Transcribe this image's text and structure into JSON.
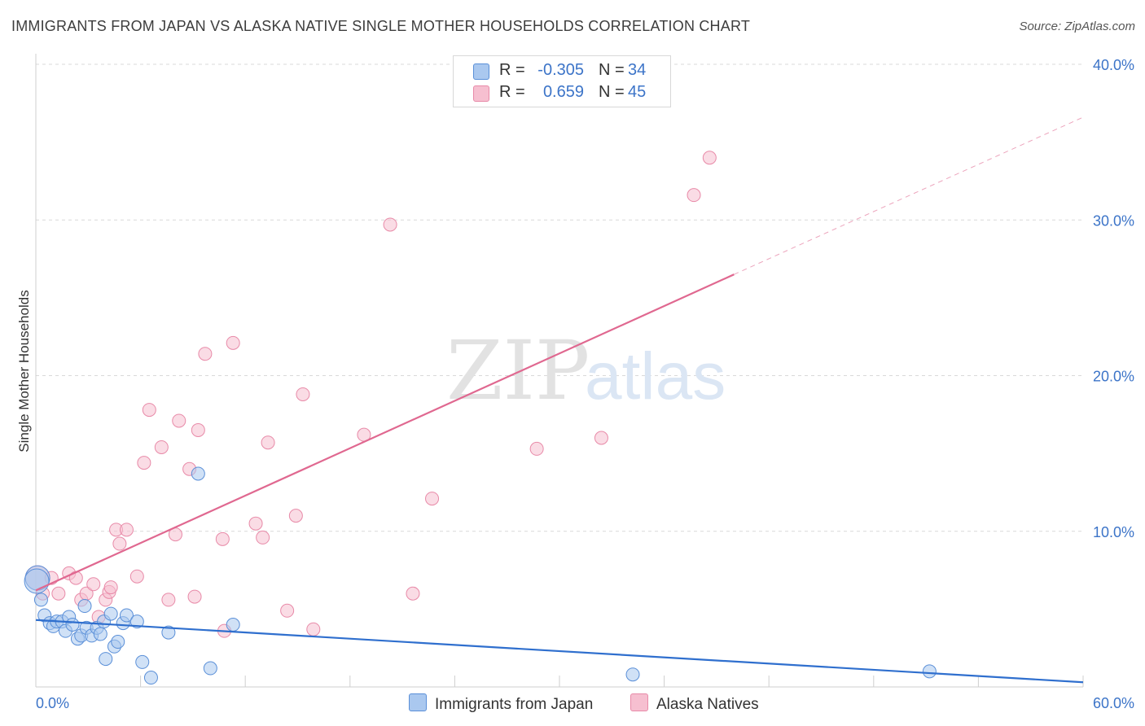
{
  "title": "IMMIGRANTS FROM JAPAN VS ALASKA NATIVE SINGLE MOTHER HOUSEHOLDS CORRELATION CHART",
  "source": "Source: ZipAtlas.com",
  "watermark": {
    "zip": "ZIP",
    "atlas": "atlas"
  },
  "legend": {
    "series1": {
      "r_label": "R =",
      "r_value": "-0.305",
      "n_label": "N =",
      "n_value": "34"
    },
    "series2": {
      "r_label": "R =",
      "r_value": "0.659",
      "n_label": "N =",
      "n_value": "45"
    }
  },
  "bottom_legend": {
    "series1": "Immigrants from Japan",
    "series2": "Alaska Natives"
  },
  "colors": {
    "series1_fill": "#aac8ef",
    "series1_stroke": "#5a8fd8",
    "series1_line": "#2f6fce",
    "series2_fill": "#f6bfd0",
    "series2_stroke": "#e88aa8",
    "series2_line": "#e06890",
    "tick": "#3c74c8",
    "grid": "#d9d9d9"
  },
  "chart_data": {
    "type": "scatter",
    "title": "IMMIGRANTS FROM JAPAN VS ALASKA NATIVE SINGLE MOTHER HOUSEHOLDS CORRELATION CHART",
    "xlabel": "",
    "ylabel": "Single Mother Households",
    "xlim": [
      0,
      60
    ],
    "ylim": [
      0,
      40
    ],
    "x_tick_labels": [
      "0.0%",
      "60.0%"
    ],
    "y_ticks": [
      10,
      20,
      30,
      40
    ],
    "y_tick_labels": [
      "10.0%",
      "20.0%",
      "30.0%",
      "40.0%"
    ],
    "grid": true,
    "series": [
      {
        "name": "Immigrants from Japan",
        "points": [
          [
            0.1,
            7.0
          ],
          [
            0.3,
            5.6
          ],
          [
            0.5,
            4.6
          ],
          [
            0.8,
            4.1
          ],
          [
            1.0,
            3.9
          ],
          [
            1.2,
            4.2
          ],
          [
            1.5,
            4.2
          ],
          [
            1.7,
            3.6
          ],
          [
            1.9,
            4.5
          ],
          [
            2.1,
            4.0
          ],
          [
            2.4,
            3.1
          ],
          [
            2.6,
            3.3
          ],
          [
            2.8,
            5.2
          ],
          [
            2.9,
            3.8
          ],
          [
            3.2,
            3.3
          ],
          [
            3.5,
            3.8
          ],
          [
            3.7,
            3.4
          ],
          [
            3.9,
            4.2
          ],
          [
            4.0,
            1.8
          ],
          [
            4.3,
            4.7
          ],
          [
            4.5,
            2.6
          ],
          [
            4.7,
            2.9
          ],
          [
            5.0,
            4.1
          ],
          [
            5.2,
            4.6
          ],
          [
            5.8,
            4.2
          ],
          [
            6.1,
            1.6
          ],
          [
            6.6,
            0.6
          ],
          [
            7.6,
            3.5
          ],
          [
            9.3,
            13.7
          ],
          [
            10.0,
            1.2
          ],
          [
            11.3,
            4.0
          ],
          [
            34.2,
            0.8
          ],
          [
            51.2,
            1.0
          ],
          [
            0.05,
            6.8
          ]
        ],
        "trend": {
          "x": [
            0,
            60
          ],
          "y": [
            4.3,
            0.3
          ]
        }
      },
      {
        "name": "Alaska Natives",
        "points": [
          [
            0.1,
            7.0
          ],
          [
            0.4,
            6.0
          ],
          [
            0.9,
            7.0
          ],
          [
            1.3,
            6.0
          ],
          [
            1.9,
            7.3
          ],
          [
            2.3,
            7.0
          ],
          [
            2.6,
            5.6
          ],
          [
            2.9,
            6.0
          ],
          [
            3.3,
            6.6
          ],
          [
            3.6,
            4.5
          ],
          [
            4.0,
            5.6
          ],
          [
            4.2,
            6.1
          ],
          [
            4.3,
            6.4
          ],
          [
            4.6,
            10.1
          ],
          [
            4.8,
            9.2
          ],
          [
            5.2,
            10.1
          ],
          [
            5.8,
            7.1
          ],
          [
            6.2,
            14.4
          ],
          [
            6.5,
            17.8
          ],
          [
            7.2,
            15.4
          ],
          [
            7.6,
            5.6
          ],
          [
            8.0,
            9.8
          ],
          [
            8.2,
            17.1
          ],
          [
            8.8,
            14.0
          ],
          [
            9.1,
            5.8
          ],
          [
            9.3,
            16.5
          ],
          [
            9.7,
            21.4
          ],
          [
            10.7,
            9.5
          ],
          [
            10.8,
            3.6
          ],
          [
            11.3,
            22.1
          ],
          [
            12.6,
            10.5
          ],
          [
            13.0,
            9.6
          ],
          [
            13.3,
            15.7
          ],
          [
            14.4,
            4.9
          ],
          [
            14.9,
            11.0
          ],
          [
            15.3,
            18.8
          ],
          [
            15.9,
            3.7
          ],
          [
            18.8,
            16.2
          ],
          [
            20.3,
            29.7
          ],
          [
            21.6,
            6.0
          ],
          [
            22.7,
            12.1
          ],
          [
            28.7,
            15.3
          ],
          [
            32.4,
            16.0
          ],
          [
            37.7,
            31.6
          ],
          [
            38.6,
            34.0
          ]
        ],
        "trend": {
          "x": [
            0,
            40
          ],
          "y": [
            6.2,
            26.5
          ]
        },
        "trend_extension": {
          "x": [
            40,
            60
          ],
          "y": [
            26.5,
            36.6
          ]
        }
      }
    ]
  }
}
